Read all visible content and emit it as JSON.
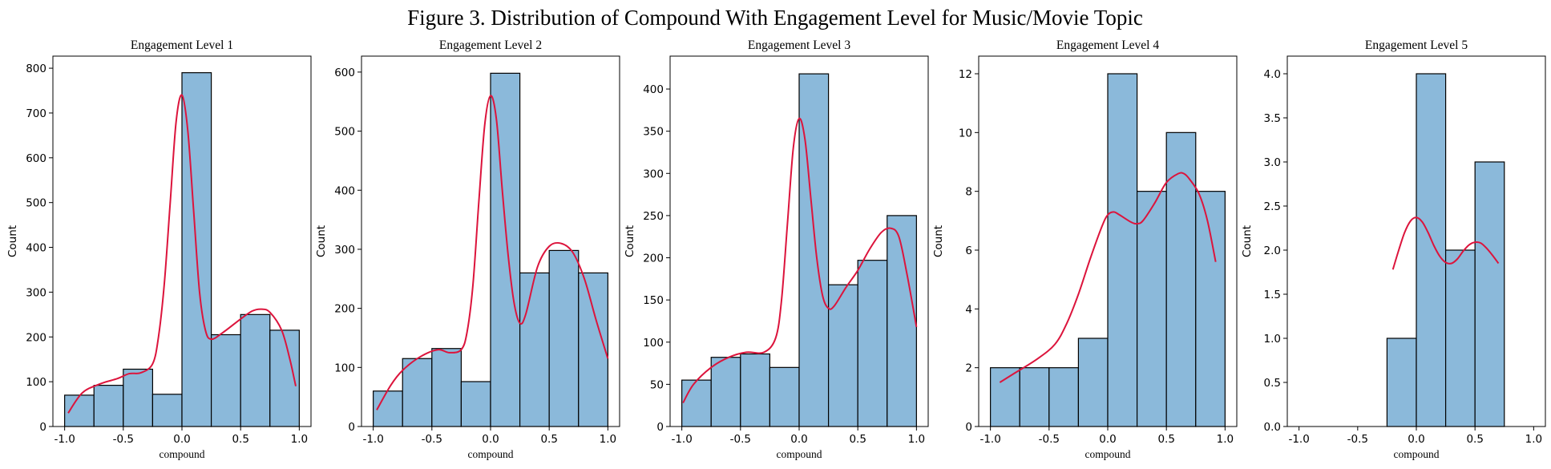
{
  "figure_title": "Figure 3. Distribution of Compound With Engagement Level for Music/Movie Topic",
  "colors": {
    "bar": "#8bb9da",
    "bar_edge": "#000000",
    "kde": "#dc143c"
  },
  "chart_data": [
    {
      "type": "bar",
      "title": "Engagement Level 1",
      "xlabel": "compound",
      "ylabel": "Count",
      "xlim": [
        -1.1,
        1.1
      ],
      "ylim": [
        0,
        827
      ],
      "xticks": [
        -1.0,
        -0.5,
        0.0,
        0.5,
        1.0
      ],
      "yticks": [
        0,
        100,
        200,
        300,
        400,
        500,
        600,
        700,
        800
      ],
      "bin_edges": [
        -1.0,
        -0.75,
        -0.5,
        -0.25,
        0.0,
        0.25,
        0.5,
        0.75,
        1.0
      ],
      "values": [
        70,
        92,
        128,
        72,
        790,
        205,
        250,
        215
      ],
      "kde": {
        "x": [
          -0.97,
          -0.85,
          -0.7,
          -0.55,
          -0.45,
          -0.35,
          -0.25,
          -0.2,
          -0.15,
          -0.1,
          -0.05,
          0.0,
          0.05,
          0.1,
          0.15,
          0.2,
          0.25,
          0.35,
          0.5,
          0.6,
          0.68,
          0.75,
          0.85,
          0.92,
          0.97
        ],
        "y": [
          30,
          75,
          95,
          107,
          118,
          120,
          140,
          200,
          320,
          500,
          680,
          740,
          660,
          480,
          300,
          215,
          195,
          210,
          240,
          258,
          262,
          255,
          215,
          150,
          90
        ]
      }
    },
    {
      "type": "bar",
      "title": "Engagement Level 2",
      "xlabel": "compound",
      "ylabel": "Count",
      "xlim": [
        -1.1,
        1.1
      ],
      "ylim": [
        0,
        627
      ],
      "xticks": [
        -1.0,
        -0.5,
        0.0,
        0.5,
        1.0
      ],
      "yticks": [
        0,
        100,
        200,
        300,
        400,
        500,
        600
      ],
      "bin_edges": [
        -1.0,
        -0.75,
        -0.5,
        -0.25,
        0.0,
        0.25,
        0.5,
        0.75,
        1.0
      ],
      "values": [
        60,
        115,
        132,
        76,
        598,
        260,
        298,
        260
      ],
      "kde": {
        "x": [
          -0.97,
          -0.85,
          -0.75,
          -0.6,
          -0.45,
          -0.35,
          -0.25,
          -0.2,
          -0.15,
          -0.1,
          -0.05,
          0.0,
          0.05,
          0.1,
          0.15,
          0.2,
          0.25,
          0.3,
          0.4,
          0.5,
          0.6,
          0.7,
          0.8,
          0.9,
          1.0
        ],
        "y": [
          28,
          70,
          95,
          118,
          130,
          125,
          130,
          160,
          240,
          380,
          510,
          560,
          520,
          400,
          290,
          210,
          175,
          190,
          270,
          305,
          310,
          295,
          250,
          180,
          115
        ]
      }
    },
    {
      "type": "bar",
      "title": "Engagement Level 3",
      "xlabel": "compound",
      "ylabel": "Count",
      "xlim": [
        -1.1,
        1.1
      ],
      "ylim": [
        0,
        439
      ],
      "xticks": [
        -1.0,
        -0.5,
        0.0,
        0.5,
        1.0
      ],
      "yticks": [
        0,
        50,
        100,
        150,
        200,
        250,
        300,
        350,
        400
      ],
      "bin_edges": [
        -1.0,
        -0.75,
        -0.5,
        -0.25,
        0.0,
        0.25,
        0.5,
        0.75,
        1.0
      ],
      "values": [
        55,
        82,
        86,
        70,
        418,
        168,
        197,
        250
      ],
      "kde": {
        "x": [
          -0.99,
          -0.9,
          -0.75,
          -0.6,
          -0.45,
          -0.3,
          -0.2,
          -0.15,
          -0.1,
          -0.05,
          0.0,
          0.05,
          0.1,
          0.15,
          0.2,
          0.25,
          0.3,
          0.4,
          0.5,
          0.6,
          0.7,
          0.78,
          0.85,
          0.92,
          1.0
        ],
        "y": [
          28,
          50,
          70,
          82,
          88,
          88,
          105,
          150,
          240,
          330,
          365,
          340,
          270,
          200,
          155,
          140,
          143,
          165,
          185,
          210,
          230,
          235,
          225,
          180,
          118
        ]
      }
    },
    {
      "type": "bar",
      "title": "Engagement Level 4",
      "xlabel": "compound",
      "ylabel": "Count",
      "xlim": [
        -1.1,
        1.1
      ],
      "ylim": [
        0,
        12.6
      ],
      "xticks": [
        -1.0,
        -0.5,
        0.0,
        0.5,
        1.0
      ],
      "yticks": [
        0,
        2,
        4,
        6,
        8,
        10,
        12
      ],
      "bin_edges": [
        -1.0,
        -0.75,
        -0.5,
        -0.25,
        0.0,
        0.25,
        0.5,
        0.75,
        1.0
      ],
      "values": [
        2,
        2,
        2,
        3,
        12,
        8,
        10,
        8
      ],
      "kde": {
        "x": [
          -0.92,
          -0.8,
          -0.6,
          -0.45,
          -0.35,
          -0.25,
          -0.15,
          -0.05,
          0.0,
          0.05,
          0.1,
          0.2,
          0.25,
          0.3,
          0.4,
          0.5,
          0.6,
          0.65,
          0.7,
          0.78,
          0.85,
          0.92
        ],
        "y": [
          1.5,
          1.8,
          2.3,
          2.8,
          3.5,
          4.5,
          5.7,
          6.8,
          7.2,
          7.3,
          7.2,
          6.95,
          6.9,
          7.0,
          7.6,
          8.3,
          8.6,
          8.6,
          8.4,
          7.9,
          7.0,
          5.6
        ]
      }
    },
    {
      "type": "bar",
      "title": "Engagement Level 5",
      "xlabel": "compound",
      "ylabel": "Count",
      "xlim": [
        -1.1,
        1.1
      ],
      "ylim": [
        0,
        4.2
      ],
      "xticks": [
        -1.0,
        -0.5,
        0.0,
        0.5,
        1.0
      ],
      "yticks": [
        0.0,
        0.5,
        1.0,
        1.5,
        2.0,
        2.5,
        3.0,
        3.5,
        4.0
      ],
      "bin_edges": [
        -0.25,
        0.0,
        0.25,
        0.5,
        0.75
      ],
      "values": [
        1,
        4,
        2,
        3
      ],
      "kde": {
        "x": [
          -0.2,
          -0.15,
          -0.1,
          -0.05,
          0.0,
          0.05,
          0.1,
          0.15,
          0.2,
          0.25,
          0.3,
          0.35,
          0.4,
          0.45,
          0.5,
          0.55,
          0.6,
          0.65,
          0.7
        ],
        "y": [
          1.78,
          2.0,
          2.2,
          2.33,
          2.37,
          2.32,
          2.2,
          2.05,
          1.93,
          1.86,
          1.85,
          1.9,
          1.99,
          2.06,
          2.09,
          2.08,
          2.02,
          1.94,
          1.85
        ]
      }
    }
  ]
}
